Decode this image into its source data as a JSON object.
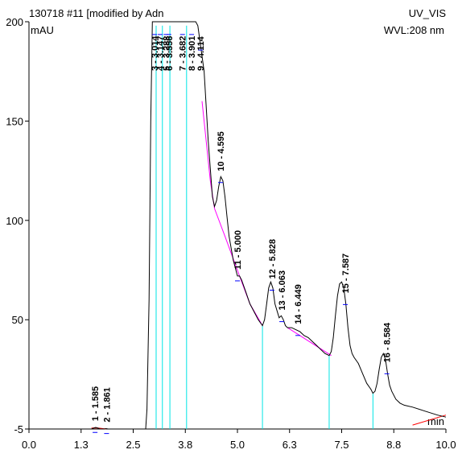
{
  "chart_data": {
    "type": "line",
    "title_left": "130718 #11 [modified by Adn",
    "title_right": "UV_VIS",
    "ylabel": "mAU",
    "xlabel": "min",
    "wavelength_label": "WVL:208 nm",
    "xlim": [
      0.0,
      10.0
    ],
    "ylim": [
      -5,
      200
    ],
    "x_ticks": [
      "0.0",
      "1.3",
      "2.5",
      "3.8",
      "5.0",
      "6.3",
      "7.5",
      "8.8",
      "10.0"
    ],
    "y_ticks": [
      "200",
      "150",
      "100",
      "50",
      "-5"
    ],
    "series": [
      {
        "x": [
          0.0,
          1.5,
          1.55,
          1.6,
          1.65,
          1.7,
          1.8,
          1.85,
          1.9,
          2.5,
          2.8,
          2.83,
          2.88,
          2.92,
          2.96,
          3.0,
          3.1,
          3.2,
          3.4,
          3.6,
          3.7,
          3.8,
          3.9,
          4.0,
          4.05,
          4.2,
          4.3,
          4.4,
          4.45,
          4.5,
          4.55,
          4.6,
          4.65,
          4.7,
          4.75,
          4.8,
          4.9,
          5.0,
          5.05,
          5.1,
          5.2,
          5.3,
          5.4,
          5.5,
          5.6,
          5.65,
          5.7,
          5.75,
          5.8,
          5.85,
          5.9,
          6.0,
          6.05,
          6.1,
          6.15,
          6.2,
          6.3,
          6.4,
          6.5,
          6.6,
          6.7,
          6.8,
          6.9,
          7.0,
          7.1,
          7.2,
          7.25,
          7.3,
          7.35,
          7.4,
          7.45,
          7.5,
          7.55,
          7.6,
          7.65,
          7.7,
          7.75,
          7.8,
          7.9,
          8.0,
          8.1,
          8.2,
          8.25,
          8.3,
          8.35,
          8.4,
          8.45,
          8.5,
          8.55,
          8.6,
          8.65,
          8.7,
          8.8,
          8.9,
          9.0,
          9.2,
          9.5,
          9.8,
          10.0
        ],
        "y": [
          -5,
          -5,
          -4.5,
          -4.2,
          -4.5,
          -5,
          -5,
          -4.8,
          -5,
          -5,
          -5,
          5,
          60,
          150,
          200,
          200,
          200,
          200,
          200,
          200,
          200,
          200,
          200,
          200,
          198,
          175,
          140,
          112,
          107,
          110,
          117,
          122,
          120,
          112,
          102,
          92,
          80,
          72,
          72,
          70,
          64,
          58,
          54,
          50,
          47,
          50,
          58,
          66,
          69,
          66,
          58,
          51,
          52,
          50,
          47,
          46,
          46,
          45,
          44,
          42,
          41,
          39,
          37,
          35,
          33,
          32,
          34,
          41,
          52,
          62,
          68,
          69,
          66,
          58,
          46,
          37,
          33,
          31,
          28,
          23,
          18,
          15,
          13,
          14,
          18,
          25,
          31,
          33,
          30,
          23,
          17,
          14,
          10,
          8,
          7,
          6,
          4,
          2,
          1
        ]
      }
    ],
    "peaks": [
      {
        "label": "1 - 1.585",
        "rt": 1.585
      },
      {
        "label": "2 - 1.861",
        "rt": 1.861
      },
      {
        "label": "3 - 3.014",
        "rt": 3.014
      },
      {
        "label": "4 - 3.147",
        "rt": 3.147
      },
      {
        "label": "5 - 3.288",
        "rt": 3.288
      },
      {
        "label": "6 - 3.356",
        "rt": 3.356
      },
      {
        "label": "7 - 3.682",
        "rt": 3.682
      },
      {
        "label": "8 - 3.901",
        "rt": 3.901
      },
      {
        "label": "9 - 4.114",
        "rt": 4.114
      },
      {
        "label": "10 - 4.595",
        "rt": 4.595
      },
      {
        "label": "11 - 5.000",
        "rt": 5.0
      },
      {
        "label": "12 - 5.828",
        "rt": 5.828
      },
      {
        "label": "13 - 6.063",
        "rt": 6.063
      },
      {
        "label": "14 - 6.449",
        "rt": 6.449
      },
      {
        "label": "15 - 7.587",
        "rt": 7.587
      },
      {
        "label": "16 - 8.584",
        "rt": 8.584
      }
    ],
    "colors": {
      "trace": "#000000",
      "baseline": "#ff00ff",
      "delimiter": "#00e5e5",
      "marker": "#0000ff",
      "start_end": "#ff0000"
    }
  }
}
